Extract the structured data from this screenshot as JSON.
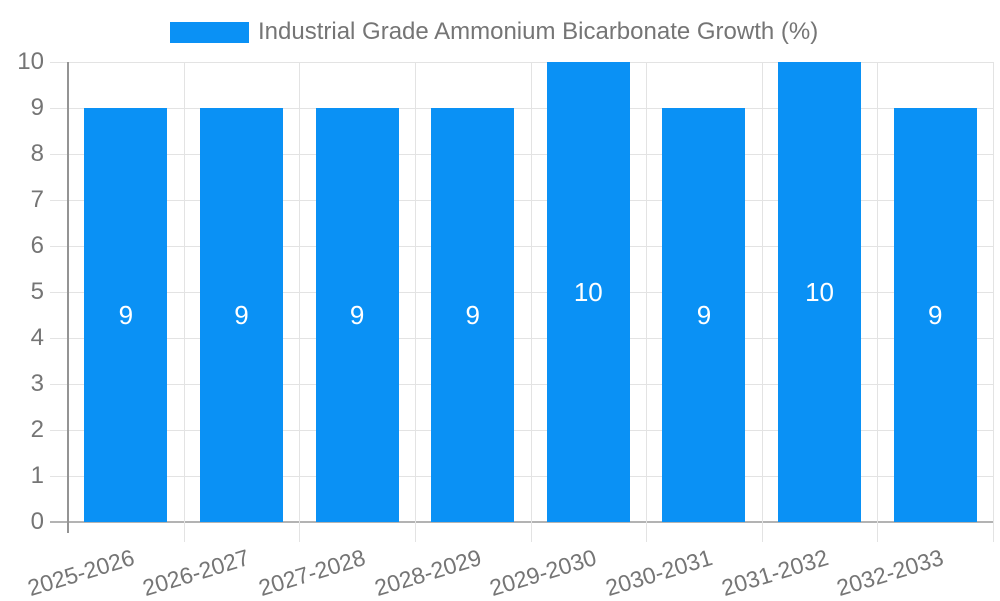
{
  "chart_data": {
    "type": "bar",
    "title": "Industrial Grade Ammonium Bicarbonate Growth (%)",
    "legend_position": "top",
    "legend": [
      {
        "label": "Industrial Grade Ammonium Bicarbonate Growth (%)",
        "color": "#0a91f5"
      }
    ],
    "categories": [
      "2025-2026",
      "2026-2027",
      "2027-2028",
      "2028-2029",
      "2029-2030",
      "2030-2031",
      "2031-2032",
      "2032-2033"
    ],
    "series": [
      {
        "name": "Industrial Grade Ammonium Bicarbonate Growth (%)",
        "values": [
          9,
          9,
          9,
          9,
          10,
          9,
          10,
          9
        ]
      }
    ],
    "bar_value_labels": [
      "9",
      "9",
      "9",
      "9",
      "10",
      "9",
      "10",
      "9"
    ],
    "xlabel": "",
    "ylabel": "",
    "ylim": [
      0,
      10
    ],
    "yticks": [
      0,
      1,
      2,
      3,
      4,
      5,
      6,
      7,
      8,
      9,
      10
    ],
    "grid": true
  },
  "colors": {
    "bar": "#0a91f5",
    "axis_text": "#757575",
    "value_label_text": "#ffffff",
    "gridline": "#e3e3e3",
    "baseline": "#b3b3b3",
    "axis_line": "#949494",
    "background": "#ffffff"
  }
}
